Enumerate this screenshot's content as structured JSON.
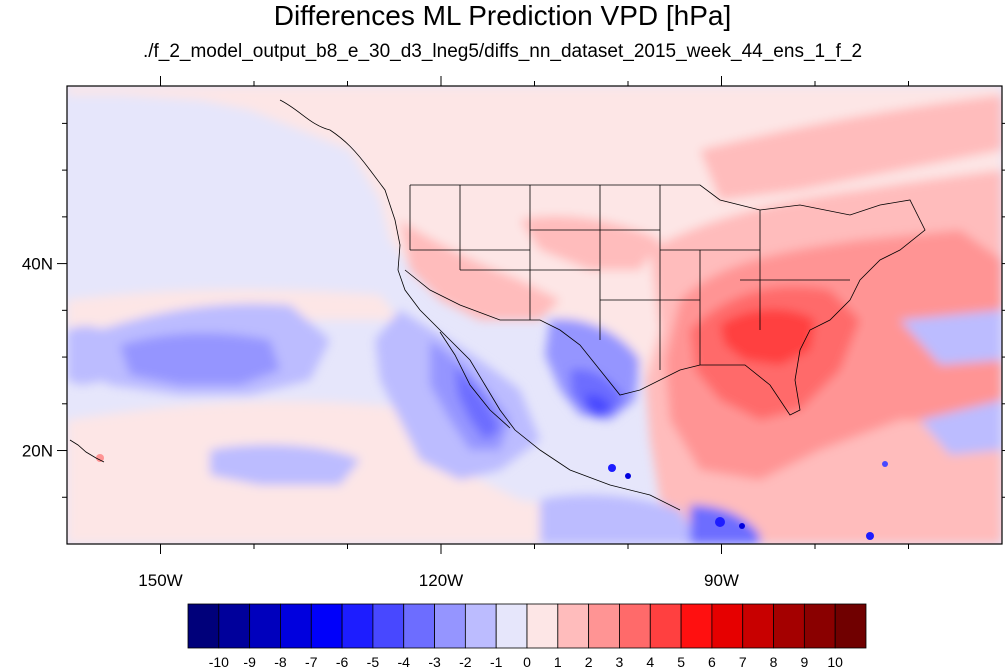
{
  "title": "Differences ML Prediction VPD [hPa]",
  "subtitle": "./f_2_model_output_b8_e_30_d3_lneg5/diffs_nn_dataset_2015_week_44_ens_1_f_2",
  "map": {
    "lon_range": [
      -160,
      -60
    ],
    "lat_range": [
      10,
      59
    ],
    "lon_labels": [
      {
        "lon": -150,
        "text": "150W"
      },
      {
        "lon": -120,
        "text": "120W"
      },
      {
        "lon": -90,
        "text": "90W"
      }
    ],
    "lat_labels": [
      {
        "lat": 40,
        "text": "40N"
      },
      {
        "lat": 20,
        "text": "20N"
      }
    ]
  },
  "colorbar": {
    "levels": [
      "-10",
      "-9",
      "-8",
      "-7",
      "-6",
      "-5",
      "-4",
      "-3",
      "-2",
      "-1",
      "0",
      "1",
      "2",
      "3",
      "4",
      "5",
      "6",
      "7",
      "8",
      "9",
      "10"
    ],
    "colors": [
      "#00007a",
      "#00009b",
      "#0000bd",
      "#0000de",
      "#0000fa",
      "#1d1dff",
      "#4848ff",
      "#6d6dff",
      "#9595ff",
      "#bcbcff",
      "#e6e6fb",
      "#fde6e6",
      "#ffbcbc",
      "#ff9494",
      "#ff6a6a",
      "#ff4040",
      "#ff1010",
      "#e60000",
      "#c80000",
      "#a40000",
      "#8a0000",
      "#700000"
    ]
  }
}
